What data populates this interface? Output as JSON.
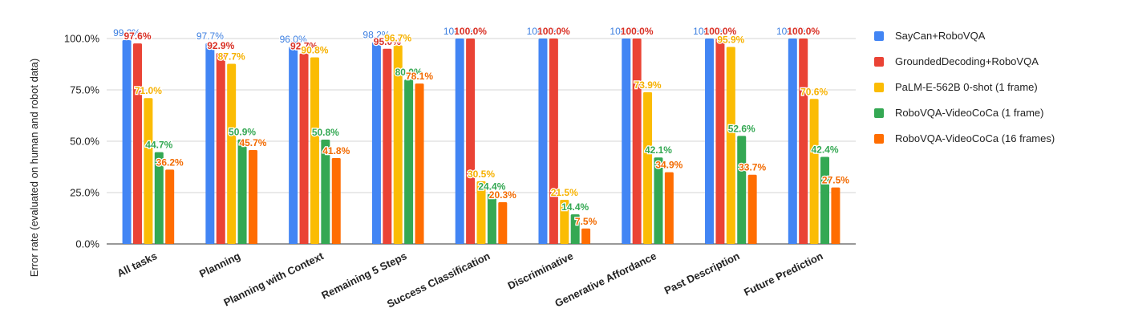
{
  "chart_data": {
    "type": "bar",
    "title": "",
    "xlabel": "",
    "ylabel": "Error rate (evaluated on human and robot data)",
    "ylim": [
      0,
      100
    ],
    "yticks": [
      "0.0%",
      "25.0%",
      "50.0%",
      "75.0%",
      "100.0%"
    ],
    "ytick_values": [
      0,
      25,
      50,
      75,
      100
    ],
    "grid": true,
    "legend_position": "right",
    "categories": [
      "All tasks",
      "Planning",
      "Planning with Context",
      "Remaining 5 Steps",
      "Success Classification",
      "Discriminative",
      "Generative Affordance",
      "Past Description",
      "Future Prediction"
    ],
    "series": [
      {
        "name": "SayCan+RoboVQA",
        "color": "#4285f4",
        "label_color": "#3d7fe0",
        "values": [
          99.2,
          97.7,
          96.0,
          98.2,
          100.0,
          100.0,
          100.0,
          100.0,
          100.0
        ],
        "labels": [
          "99.2%",
          "97.7%",
          "96.0%",
          "98.2%",
          "100.0%",
          "100.0%",
          "100.0%",
          "100.0%",
          "100.0%"
        ]
      },
      {
        "name": "GroundedDecoding+RoboVQA",
        "color": "#ea4335",
        "label_color": "#d93025",
        "values": [
          97.6,
          92.9,
          92.7,
          95.0,
          100.0,
          100.0,
          100.0,
          100.0,
          100.0
        ],
        "labels": [
          "97.6%",
          "92.9%",
          "92.7%",
          "95.0%",
          "100.0%",
          "100.0%",
          "100.0%",
          "100.0%",
          "100.0%"
        ]
      },
      {
        "name": "PaLM-E-562B 0-shot (1 frame)",
        "color": "#fbbc04",
        "label_color": "#f6b100",
        "values": [
          71.0,
          87.7,
          90.8,
          96.7,
          30.5,
          21.5,
          73.9,
          95.9,
          70.6
        ],
        "labels": [
          "71.0%",
          "87.7%",
          "90.8%",
          "96.7%",
          "30.5%",
          "21.5%",
          "73.9%",
          "95.9%",
          "70.6%"
        ]
      },
      {
        "name": "RoboVQA-VideoCoCa (1 frame)",
        "color": "#34a853",
        "label_color": "#34a853",
        "values": [
          44.7,
          50.9,
          50.8,
          80.0,
          24.4,
          14.4,
          42.1,
          52.6,
          42.4
        ],
        "labels": [
          "44.7%",
          "50.9%",
          "50.8%",
          "80.0%",
          "24.4%",
          "14.4%",
          "42.1%",
          "52.6%",
          "42.4%"
        ]
      },
      {
        "name": "RoboVQA-VideoCoCa (16 frames)",
        "color": "#ff6d01",
        "label_color": "#f26a00",
        "values": [
          36.2,
          45.7,
          41.8,
          78.1,
          20.3,
          7.5,
          34.9,
          33.7,
          27.5
        ],
        "labels": [
          "36.2%",
          "45.7%",
          "41.8%",
          "78.1%",
          "20.3%",
          "7.5%",
          "34.9%",
          "33.7%",
          "27.5%"
        ]
      }
    ]
  }
}
